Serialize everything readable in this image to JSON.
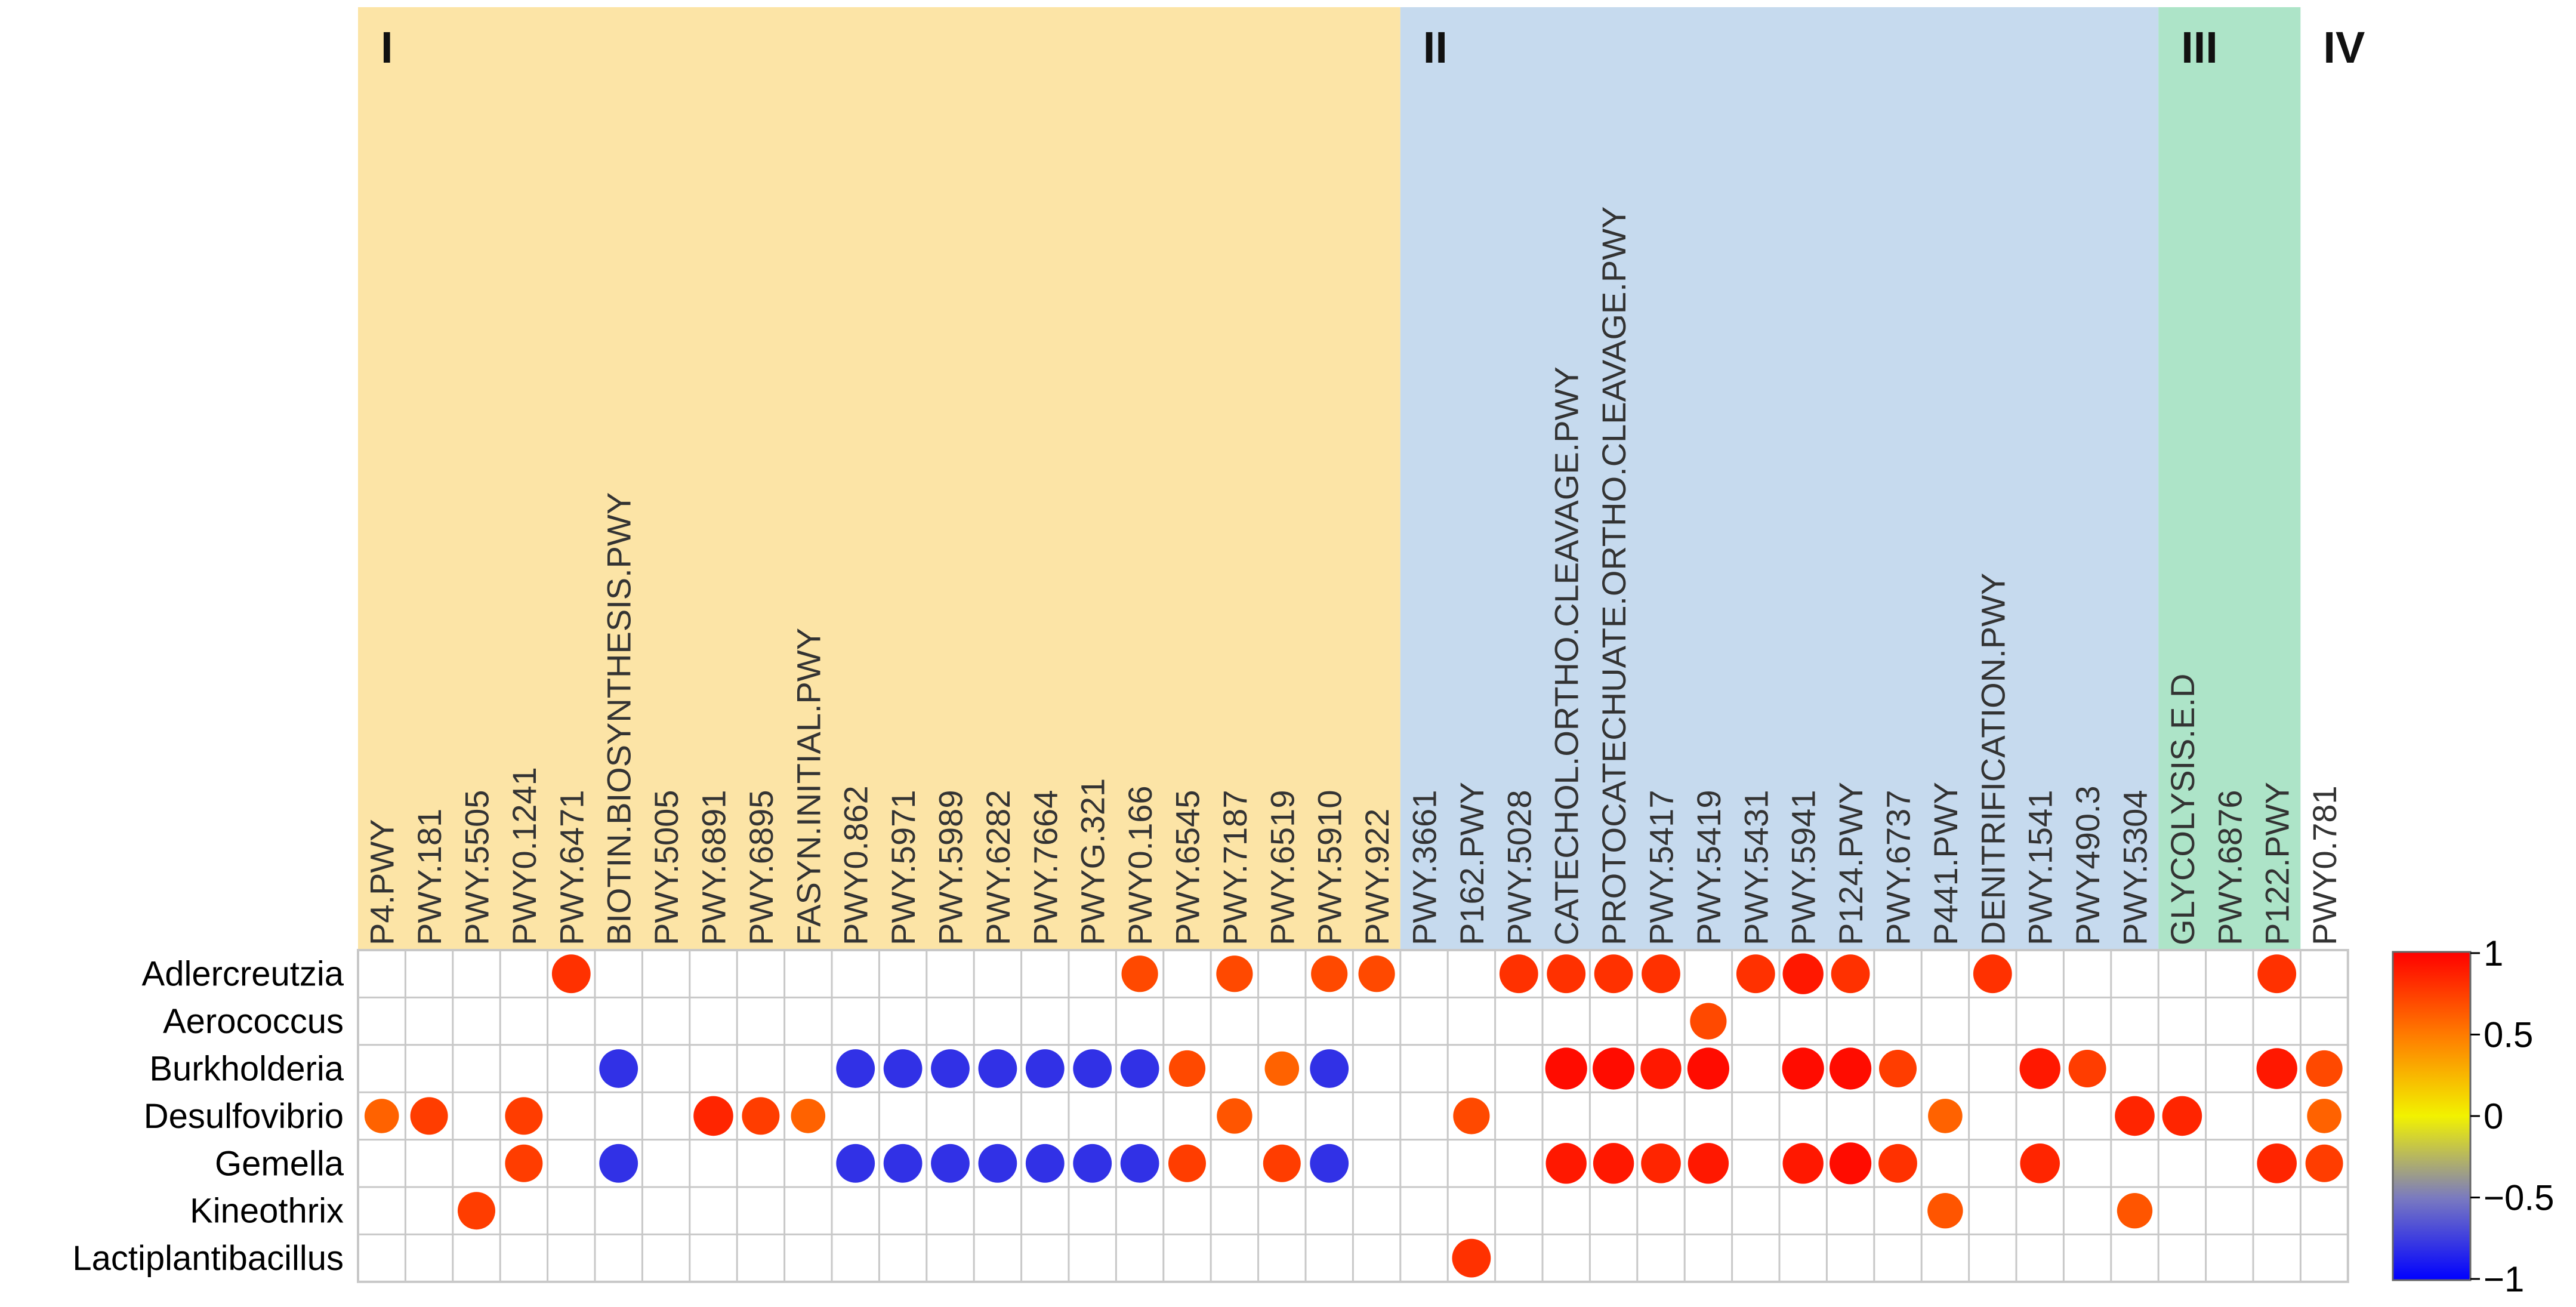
{
  "chart_data": {
    "type": "dot-heatmap",
    "groups": [
      {
        "label": "I",
        "start": 0,
        "end": 21,
        "color": "#fce4a6"
      },
      {
        "label": "II",
        "start": 22,
        "end": 37,
        "color": "#c6daee"
      },
      {
        "label": "III",
        "start": 38,
        "end": 40,
        "color": "#ade4c8"
      },
      {
        "label": "IV",
        "start": 41,
        "end": 41,
        "color": "#ffffff"
      }
    ],
    "columns": [
      "P4.PWY",
      "PWY.181",
      "PWY.5505",
      "PWY0.1241",
      "PWY.6471",
      "BIOTIN.BIOSYNTHESIS.PWY",
      "PWY.5005",
      "PWY.6891",
      "PWY.6895",
      "FASYN.INITIAL.PWY",
      "PWY0.862",
      "PWY.5971",
      "PWY.5989",
      "PWY.6282",
      "PWY.7664",
      "PWYG.321",
      "PWY0.166",
      "PWY.6545",
      "PWY.7187",
      "PWY.6519",
      "PWY.5910",
      "PWY.922",
      "PWY.3661",
      "P162.PWY",
      "PWY.5028",
      "CATECHOL.ORTHO.CLEAVAGE.PWY",
      "PROTOCATECHUATE.ORTHO.CLEAVAGE.PWY",
      "PWY.5417",
      "PWY.5419",
      "PWY.5431",
      "PWY.5941",
      "P124.PWY",
      "PWY.6737",
      "P441.PWY",
      "DENITRIFICATION.PWY",
      "PWY.1541",
      "PWY490.3",
      "PWY.5304",
      "GLYCOLYSIS.E.D",
      "PWY.6876",
      "P122.PWY",
      "PWY0.781"
    ],
    "rows": [
      "Adlercreutzia",
      "Aerococcus",
      "Burkholderia",
      "Desulfovibrio",
      "Gemella",
      "Kineothrix",
      "Lactiplantibacillus"
    ],
    "values": [
      [
        0,
        0,
        0,
        0,
        0.8,
        0,
        0,
        0,
        0,
        0,
        0,
        0,
        0,
        0,
        0,
        0,
        0.7,
        0,
        0.7,
        0,
        0.7,
        0.7,
        0,
        0,
        0.8,
        0.8,
        0.8,
        0.8,
        0,
        0.8,
        0.9,
        0.8,
        0,
        0,
        0.8,
        0,
        0,
        0,
        0,
        0,
        0.8,
        0
      ],
      [
        0,
        0,
        0,
        0,
        0,
        0,
        0,
        0,
        0,
        0,
        0,
        0,
        0,
        0,
        0,
        0,
        0,
        0,
        0,
        0,
        0,
        0,
        0,
        0,
        0,
        0,
        0,
        0,
        0.7,
        0,
        0,
        0,
        0,
        0,
        0,
        0,
        0,
        0,
        0,
        0,
        0,
        0
      ],
      [
        0,
        0,
        0,
        0,
        0,
        -0.8,
        0,
        0,
        0,
        0,
        -0.8,
        -0.8,
        -0.8,
        -0.8,
        -0.8,
        -0.8,
        -0.8,
        0.7,
        0,
        0.6,
        -0.8,
        0,
        0,
        0,
        0,
        0.95,
        0.95,
        0.9,
        0.95,
        0,
        0.95,
        0.95,
        0.75,
        0,
        0,
        0.9,
        0.75,
        0,
        0,
        0,
        0.9,
        0.7
      ],
      [
        0.6,
        0.75,
        0,
        0.75,
        0,
        0,
        0,
        0.85,
        0.75,
        0.6,
        0,
        0,
        0,
        0,
        0,
        0,
        0,
        0,
        0.65,
        0,
        0,
        0,
        0,
        0.7,
        0,
        0,
        0,
        0,
        0,
        0,
        0,
        0,
        0,
        0.6,
        0,
        0,
        0,
        0.85,
        0.85,
        0,
        0,
        0.6
      ],
      [
        0,
        0,
        0,
        0.75,
        0,
        -0.8,
        0,
        0,
        0,
        0,
        -0.8,
        -0.8,
        -0.8,
        -0.8,
        -0.8,
        -0.8,
        -0.8,
        0.75,
        0,
        0.75,
        -0.8,
        0,
        0,
        0,
        0,
        0.9,
        0.9,
        0.85,
        0.9,
        0,
        0.9,
        0.95,
        0.8,
        0,
        0,
        0.85,
        0,
        0,
        0,
        0,
        0.85,
        0.75
      ],
      [
        0,
        0,
        0.75,
        0,
        0,
        0,
        0,
        0,
        0,
        0,
        0,
        0,
        0,
        0,
        0,
        0,
        0,
        0,
        0,
        0,
        0,
        0,
        0,
        0,
        0,
        0,
        0,
        0,
        0,
        0,
        0,
        0,
        0,
        0.65,
        0,
        0,
        0,
        0.65,
        0,
        0,
        0,
        0
      ],
      [
        0,
        0,
        0,
        0,
        0,
        0,
        0,
        0,
        0,
        0,
        0,
        0,
        0,
        0,
        0,
        0,
        0,
        0,
        0,
        0,
        0,
        0,
        0,
        0.8,
        0,
        0,
        0,
        0,
        0,
        0,
        0,
        0,
        0,
        0,
        0,
        0,
        0,
        0,
        0,
        0,
        0,
        0
      ]
    ],
    "colorbar": {
      "ticks": [
        "1",
        "0.5",
        "0",
        "−0.5",
        "−1"
      ],
      "range": [
        -1,
        1
      ]
    }
  }
}
